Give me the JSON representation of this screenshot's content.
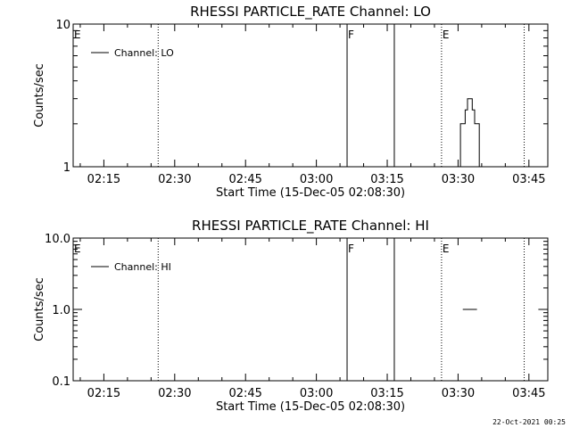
{
  "footer_timestamp": "22-Oct-2021 00:25",
  "chart_data": [
    {
      "type": "line",
      "title": "RHESSI PARTICLE_RATE Channel: LO",
      "xlabel": "Start Time (15-Dec-05 02:08:30)",
      "ylabel": "Counts/sec",
      "yscale": "log",
      "ylim": [
        1,
        10
      ],
      "yticks": [
        {
          "value": 1,
          "label": "1"
        },
        {
          "value": 10,
          "label": "10"
        }
      ],
      "xlim": [
        "02:08:30",
        "03:49:00"
      ],
      "xticks": [
        "02:15",
        "02:30",
        "02:45",
        "03:00",
        "03:15",
        "03:30",
        "03:45"
      ],
      "legend": {
        "placement": "top-left"
      },
      "series": [
        {
          "name": "Channel: LO",
          "x": [
            "03:30:30",
            "03:30:30",
            "03:31:30",
            "03:31:30",
            "03:32:00",
            "03:32:00",
            "03:33:00",
            "03:33:00",
            "03:33:30",
            "03:33:30",
            "03:34:30",
            "03:34:30"
          ],
          "y": [
            0.9,
            2,
            2,
            2.5,
            2.5,
            3,
            3,
            2.5,
            2.5,
            2,
            2,
            0.9
          ]
        }
      ],
      "markers": [
        {
          "time": "02:26:30",
          "style": "dotted",
          "label": ""
        },
        {
          "time": "03:06:30",
          "style": "solid",
          "label": "F"
        },
        {
          "time": "03:16:30",
          "style": "solid",
          "label": ""
        },
        {
          "time": "03:26:30",
          "style": "dotted",
          "label": "E"
        },
        {
          "time": "03:44:00",
          "style": "dotted",
          "label": ""
        }
      ],
      "edge_label": "E"
    },
    {
      "type": "line",
      "title": "RHESSI PARTICLE_RATE Channel: HI",
      "xlabel": "Start Time (15-Dec-05 02:08:30)",
      "ylabel": "Counts/sec",
      "yscale": "log",
      "ylim": [
        0.1,
        10
      ],
      "yticks": [
        {
          "value": 0.1,
          "label": "0.1"
        },
        {
          "value": 1,
          "label": "1.0"
        },
        {
          "value": 10,
          "label": "10.0"
        }
      ],
      "xlim": [
        "02:08:30",
        "03:49:00"
      ],
      "xticks": [
        "02:15",
        "02:30",
        "02:45",
        "03:00",
        "03:15",
        "03:30",
        "03:45"
      ],
      "legend": {
        "placement": "top-left"
      },
      "series": [
        {
          "name": "Channel: HI",
          "segments": [
            {
              "x": [
                "03:31:00",
                "03:34:00"
              ],
              "y": [
                1,
                1
              ]
            },
            {
              "x": [
                "03:47:00",
                "03:49:00"
              ],
              "y": [
                1,
                1
              ]
            }
          ]
        }
      ],
      "markers": [
        {
          "time": "02:26:30",
          "style": "dotted",
          "label": ""
        },
        {
          "time": "03:06:30",
          "style": "solid",
          "label": "F"
        },
        {
          "time": "03:16:30",
          "style": "solid",
          "label": ""
        },
        {
          "time": "03:26:30",
          "style": "dotted",
          "label": "E"
        },
        {
          "time": "03:44:00",
          "style": "dotted",
          "label": ""
        }
      ],
      "edge_label": "E"
    }
  ]
}
